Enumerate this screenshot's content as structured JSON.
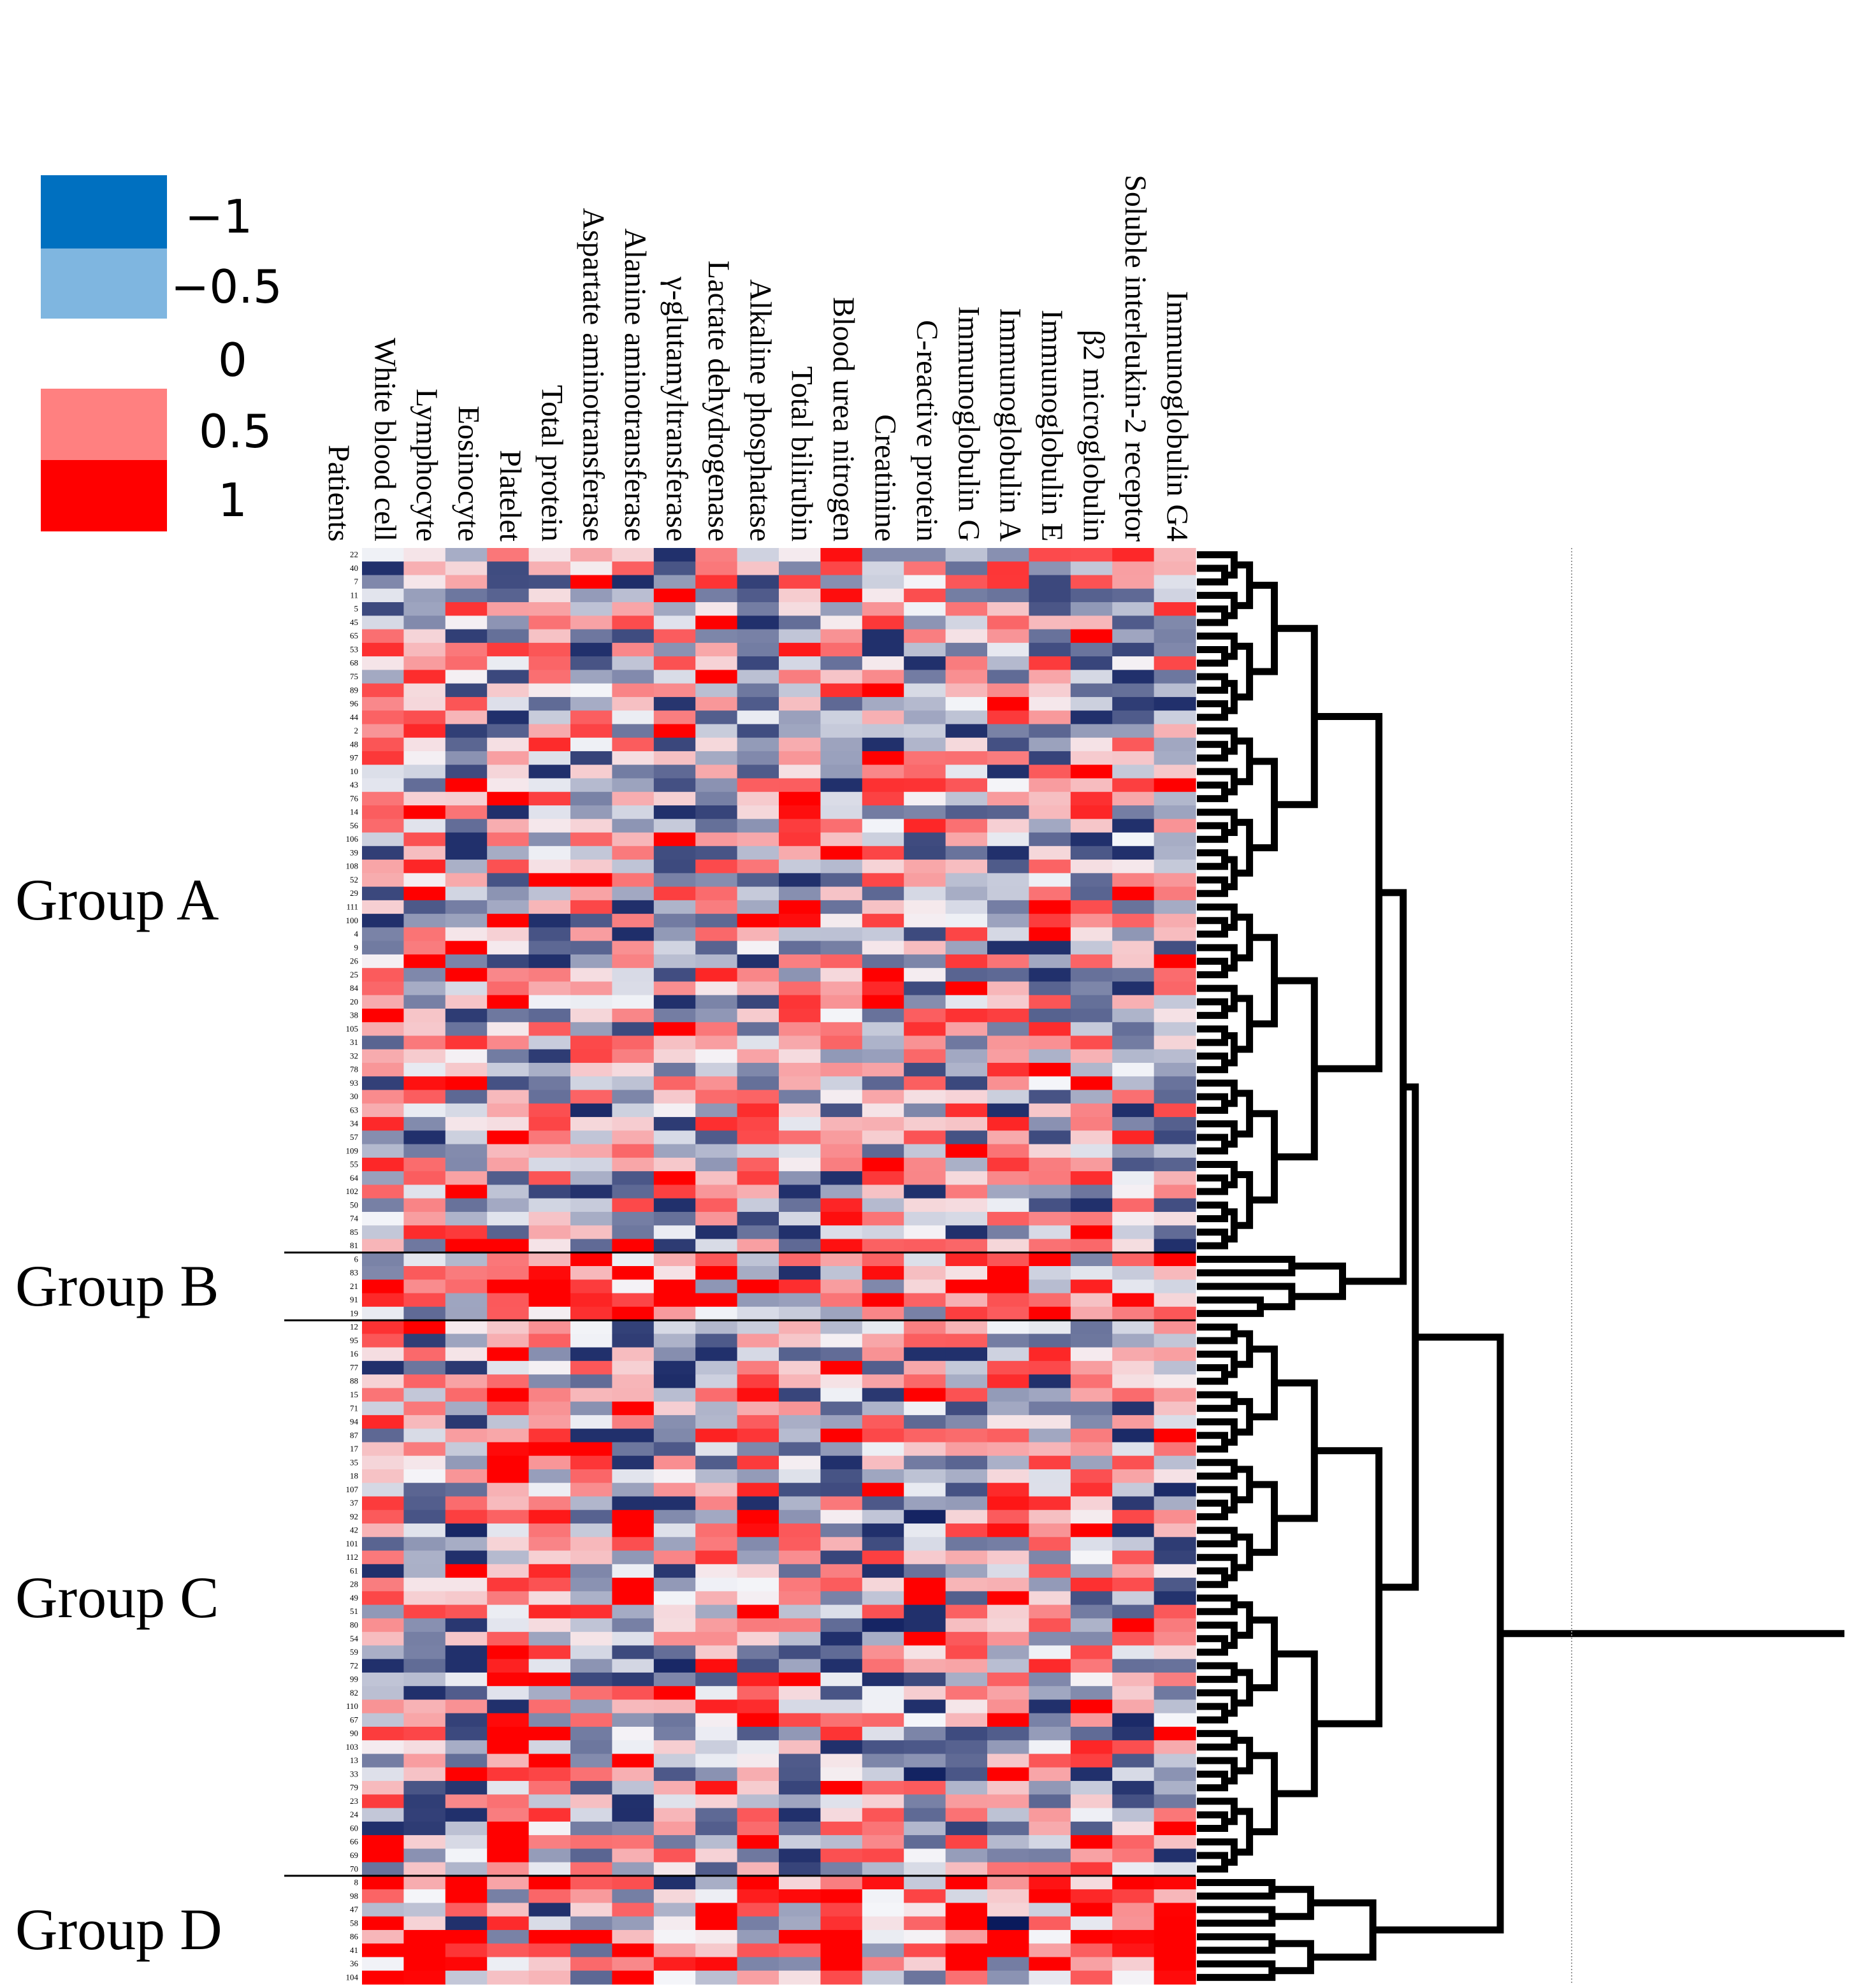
{
  "chart_data": {
    "type": "heatmap",
    "title": "",
    "row_axis_label": "Patients",
    "columns": [
      "White blood cell",
      "Lymphocyte",
      "Eosinocyte",
      "Platelet",
      "Total protein",
      "Aspartate aminotransferase",
      "Alanine aminotransferase",
      "γ-glutamyltransferase",
      "Lactate dehydrogenase",
      "Alkaline phosphatase",
      "Total bilirubin",
      "Blood urea nitrogen",
      "Creatinine",
      "C-reactive protein",
      "Immunoglobulin G",
      "Immunoglobulin A",
      "Immunoglobulin E",
      "β2 microglobulin",
      "Soluble interleukin-2 receptor",
      "Immunoglobulin G4"
    ],
    "color_scale": {
      "min": -1,
      "max": 1,
      "legend": [
        {
          "label": "−1",
          "color": "#0070c0"
        },
        {
          "label": "−0.5",
          "color": "#7fb6e0"
        },
        {
          "label": "0",
          "color": "#ffffff"
        },
        {
          "label": "0.5",
          "color": "#ff8080"
        },
        {
          "label": "1",
          "color": "#ff0000"
        }
      ]
    },
    "cell_colors": {
      "neg_extreme": "#0a1a5c",
      "neg_mid": "#5a6f9e",
      "neutral": "#f4f5f9",
      "pos": "#ff0000"
    },
    "groups": [
      {
        "name": "Group A",
        "patients": [
          "22",
          "40",
          "7",
          "11",
          "5",
          "45",
          "65",
          "53",
          "68",
          "75",
          "89",
          "96",
          "44",
          "2",
          "48",
          "97",
          "10",
          "43",
          "76",
          "14",
          "56",
          "106",
          "39",
          "108",
          "52",
          "29",
          "111",
          "100",
          "4",
          "9",
          "26",
          "25",
          "84",
          "20",
          "38",
          "105",
          "31",
          "32",
          "78",
          "93",
          "30",
          "63",
          "34",
          "57",
          "109",
          "55",
          "64",
          "102",
          "50",
          "74",
          "85",
          "81"
        ]
      },
      {
        "name": "Group B",
        "patients": [
          "6",
          "83",
          "21",
          "91",
          "19"
        ]
      },
      {
        "name": "Group C",
        "patients": [
          "12",
          "95",
          "16",
          "77",
          "88",
          "15",
          "71",
          "94",
          "87",
          "17",
          "35",
          "18",
          "107",
          "37",
          "92",
          "42",
          "101",
          "112",
          "61",
          "28",
          "49",
          "51",
          "80",
          "54",
          "59",
          "72",
          "99",
          "82",
          "110",
          "67",
          "90",
          "103",
          "13",
          "33",
          "79",
          "23",
          "24",
          "60",
          "66",
          "69",
          "70"
        ]
      },
      {
        "name": "Group D",
        "patients": [
          "8",
          "98",
          "47",
          "58",
          "86",
          "41",
          "36",
          "104"
        ]
      }
    ],
    "dendrogram": "hierarchical clustering of patients; 4 main clusters (Group A, Group B, Group C, Group D)"
  }
}
